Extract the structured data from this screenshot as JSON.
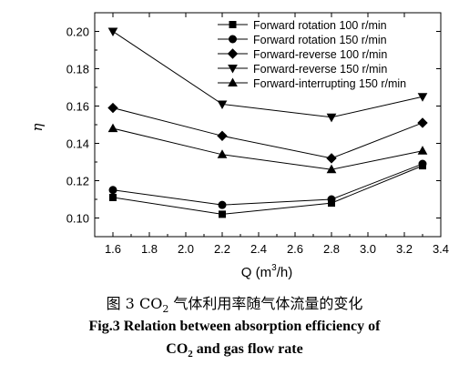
{
  "chart_data": {
    "type": "line",
    "xlabel_main": "Q (m",
    "xlabel_sup": "3",
    "xlabel_end": "/h)",
    "ylabel": "η",
    "xlim": [
      1.5,
      3.4
    ],
    "ylim": [
      0.09,
      0.21
    ],
    "xticks": [
      "1.6",
      "1.8",
      "2.0",
      "2.2",
      "2.4",
      "2.6",
      "2.8",
      "3.0",
      "3.2",
      "3.4"
    ],
    "yticks": [
      "0.10",
      "0.12",
      "0.14",
      "0.16",
      "0.18",
      "0.20"
    ],
    "x": [
      1.6,
      2.2,
      2.8,
      3.3
    ],
    "grid": false,
    "legend_position": "top-right",
    "series": [
      {
        "name": "Forward rotation 100 r/min",
        "marker": "square",
        "values": [
          0.111,
          0.102,
          0.108,
          0.128
        ]
      },
      {
        "name": "Forward rotation 150 r/min",
        "marker": "circle",
        "values": [
          0.115,
          0.107,
          0.11,
          0.129
        ]
      },
      {
        "name": "Forward-reverse 100 r/min",
        "marker": "diamond",
        "values": [
          0.159,
          0.144,
          0.132,
          0.151
        ]
      },
      {
        "name": "Forward-reverse 150 r/min",
        "marker": "triangle-down",
        "values": [
          0.2,
          0.161,
          0.154,
          0.165
        ]
      },
      {
        "name": "Forward-interrupting 150 r/min",
        "marker": "triangle-up",
        "values": [
          0.148,
          0.134,
          0.126,
          0.136
        ]
      }
    ]
  },
  "caption": {
    "cn_prefix": "图 3 CO",
    "cn_sub": "2",
    "cn_suffix": " 气体利用率随气体流量的变化",
    "en_line1": "Fig.3 Relation between absorption efficiency of",
    "en_line2_prefix": "CO",
    "en_line2_sub": "2",
    "en_line2_suffix": " and gas flow rate"
  }
}
